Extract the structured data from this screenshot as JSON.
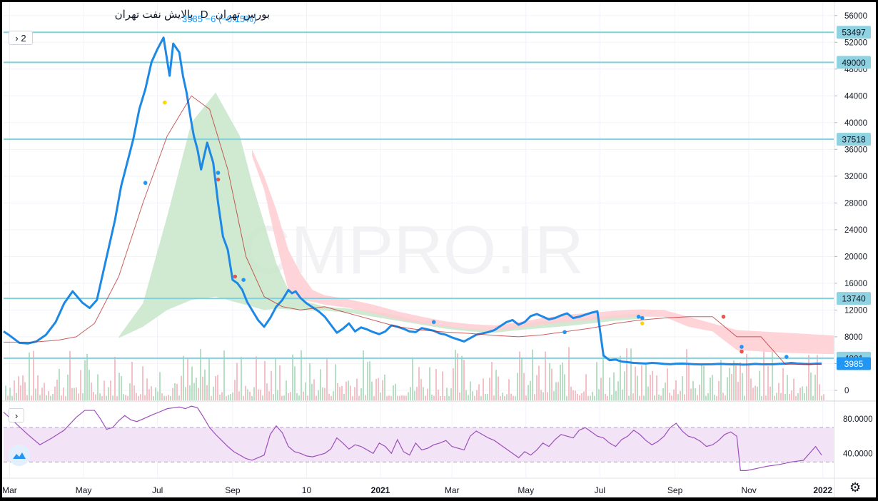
{
  "header": {
    "symbol": "پالایش نفت تهران",
    "interval": "D",
    "exchange": "بورس تهران",
    "last_price": "3985",
    "change": "−6 (−0.15%)",
    "collapse_label": "2"
  },
  "watermark": "CMPRO.IR",
  "colors": {
    "price_line": "#1e88e5",
    "level_line": "#7fd1de",
    "level_badge": "#8fd3e3",
    "rsi_band": "#f3e3f7",
    "rsi_line": "#9c4fbc",
    "cloud_green": "#c8e6c9",
    "cloud_red": "#ffcdd2",
    "kijun": "#b71c1c"
  },
  "chart_data": [
    {
      "type": "line",
      "name_hint": "price",
      "y_ticks": [
        0,
        4000,
        8000,
        12000,
        16000,
        20000,
        24000,
        28000,
        32000,
        36000,
        40000,
        44000,
        48000,
        52000,
        56000
      ],
      "ylim": [
        -1500,
        58000
      ],
      "x_ticks": [
        "Mar",
        "May",
        "Jul",
        "Sep",
        "10",
        "2021",
        "Mar",
        "May",
        "Jul",
        "Sep",
        "Nov",
        "2022"
      ],
      "x_tick_days": [
        0,
        61,
        122,
        184,
        245,
        306,
        365,
        426,
        487,
        549,
        610,
        671
      ],
      "xlim": [
        -5,
        680
      ],
      "levels": [
        53497,
        49000,
        37518,
        13740,
        4801
      ],
      "last_value_badge": 3985,
      "series": [
        {
          "role": "price",
          "x": [
            -5,
            0,
            8,
            15,
            22,
            30,
            38,
            45,
            52,
            60,
            66,
            72,
            77,
            82,
            87,
            92,
            97,
            102,
            107,
            112,
            117,
            122,
            127,
            132,
            135,
            140,
            143,
            146,
            150,
            152,
            155,
            158,
            163,
            168,
            172,
            176,
            180,
            184,
            188,
            192,
            196,
            200,
            205,
            210,
            215,
            220,
            225,
            230,
            233,
            236,
            240,
            245,
            250,
            255,
            260,
            265,
            270,
            275,
            280,
            285,
            290,
            295,
            300,
            305,
            310,
            315,
            320,
            325,
            330,
            335,
            340,
            345,
            350,
            355,
            360,
            365,
            370,
            375,
            380,
            385,
            390,
            395,
            400,
            405,
            410,
            415,
            420,
            425,
            430,
            435,
            440,
            445,
            450,
            455,
            460,
            465,
            470,
            475,
            480,
            485,
            490,
            495,
            500,
            505,
            510,
            515,
            520,
            525,
            530,
            535,
            540,
            545,
            550,
            555,
            560,
            565,
            570,
            575,
            580,
            585,
            590,
            595,
            600,
            605,
            610,
            615,
            620,
            625,
            630,
            635,
            640,
            645,
            650,
            655,
            660,
            665,
            670
          ],
          "y": [
            8800,
            8200,
            7100,
            7000,
            7300,
            8300,
            10200,
            13000,
            14800,
            13100,
            12300,
            13500,
            17500,
            21500,
            25500,
            30500,
            34000,
            37500,
            42000,
            45000,
            49000,
            51000,
            52700,
            47000,
            51800,
            50500,
            47000,
            44500,
            40000,
            38000,
            36000,
            33000,
            37000,
            34000,
            28000,
            23000,
            21000,
            16500,
            16000,
            15000,
            13200,
            12000,
            10500,
            9500,
            10800,
            12500,
            13500,
            15000,
            14500,
            14800,
            13800,
            13000,
            12400,
            11800,
            11000,
            9800,
            8600,
            9200,
            10000,
            8800,
            9400,
            9100,
            8700,
            8400,
            8800,
            9700,
            9500,
            9200,
            8800,
            8700,
            9300,
            9100,
            8900,
            8500,
            8300,
            7900,
            7600,
            7300,
            7800,
            8300,
            8500,
            8700,
            9000,
            9600,
            10200,
            10500,
            9800,
            10200,
            11100,
            11400,
            11000,
            10600,
            10800,
            11200,
            11500,
            10800,
            11000,
            11300,
            11600,
            11800,
            5200,
            4500,
            4600,
            4300,
            4200,
            4100,
            4050,
            4000,
            4100,
            4050,
            3950,
            3900,
            3980,
            4000,
            3950,
            3900,
            3870,
            3880,
            3900,
            3950,
            3920,
            3880,
            3900,
            3850,
            3870,
            3950,
            3900,
            3880,
            3900,
            3950,
            3990,
            4100,
            4000,
            3950,
            3920,
            3985,
            3985
          ]
        },
        {
          "role": "kijun",
          "x": [
            -5,
            20,
            40,
            55,
            70,
            90,
            110,
            130,
            150,
            165,
            180,
            195,
            210,
            225,
            240,
            260,
            280,
            300,
            320,
            340,
            360,
            380,
            400,
            420,
            440,
            460,
            480,
            500,
            520,
            540,
            560,
            580,
            600,
            620,
            640,
            660,
            670
          ],
          "y": [
            7200,
            7200,
            7500,
            8000,
            10000,
            17000,
            28000,
            38000,
            44000,
            42000,
            33000,
            20000,
            14000,
            12500,
            12000,
            12500,
            11500,
            10500,
            9500,
            9000,
            8700,
            8500,
            8200,
            8000,
            8300,
            8800,
            9300,
            10000,
            10500,
            10800,
            11000,
            11000,
            8000,
            8000,
            3900,
            3900,
            3900
          ]
        }
      ],
      "cloud": [
        {
          "sign": "bullish",
          "x": [
            90,
            110,
            130,
            150,
            170,
            190,
            200,
            210,
            220,
            230,
            240,
            250,
            260,
            280,
            300,
            320,
            340,
            360,
            380,
            400,
            420,
            440,
            460,
            480,
            500,
            520
          ],
          "upper": [
            8000,
            13000,
            26000,
            40000,
            44500,
            38000,
            31000,
            25000,
            19000,
            15000,
            13500,
            13000,
            12500,
            12200,
            11800,
            11200,
            10200,
            9600,
            9200,
            9000,
            9800,
            10400,
            10600,
            10900,
            11200,
            11500
          ],
          "lower": [
            7800,
            9500,
            12000,
            13500,
            14000,
            13000,
            12500,
            12000,
            12200,
            12100,
            12000,
            11900,
            11900,
            11600,
            11000,
            10400,
            9800,
            9200,
            8800,
            8600,
            9000,
            9300,
            9600,
            10000,
            10400,
            10700
          ]
        },
        {
          "sign": "bearish",
          "x": [
            200,
            210,
            220,
            230,
            240,
            250,
            260,
            280,
            300,
            320,
            340,
            360,
            380,
            400,
            420,
            440,
            460,
            480,
            500,
            520,
            540,
            560,
            580,
            600,
            620,
            640,
            660,
            680
          ],
          "upper": [
            36000,
            32000,
            27000,
            21000,
            17500,
            15000,
            14200,
            13600,
            12800,
            11800,
            11000,
            10300,
            9900,
            9700,
            10200,
            10800,
            11300,
            11600,
            11900,
            12100,
            12000,
            11000,
            10000,
            9000,
            8800,
            8600,
            8400,
            8200
          ],
          "lower": [
            35000,
            30000,
            22000,
            15000,
            13500,
            13200,
            12800,
            12300,
            11500,
            10600,
            10000,
            9500,
            9100,
            8900,
            9300,
            9800,
            10200,
            10500,
            10800,
            11000,
            11000,
            9500,
            8800,
            6000,
            5800,
            5600,
            5500,
            5400
          ]
        }
      ],
      "markers": [
        {
          "x": 112,
          "y": 31000,
          "color": "#2196f3"
        },
        {
          "x": 128,
          "y": 43000,
          "color": "#ffd600"
        },
        {
          "x": 172,
          "y": 32500,
          "color": "#2196f3"
        },
        {
          "x": 172,
          "y": 31500,
          "color": "#ef5350"
        },
        {
          "x": 186,
          "y": 17000,
          "color": "#ef5350"
        },
        {
          "x": 193,
          "y": 16500,
          "color": "#2196f3"
        },
        {
          "x": 350,
          "y": 10200,
          "color": "#2196f3"
        },
        {
          "x": 458,
          "y": 8700,
          "color": "#2196f3"
        },
        {
          "x": 519,
          "y": 11000,
          "color": "#2196f3"
        },
        {
          "x": 522,
          "y": 10800,
          "color": "#2196f3"
        },
        {
          "x": 522,
          "y": 10000,
          "color": "#ffd600"
        },
        {
          "x": 589,
          "y": 11000,
          "color": "#ef5350"
        },
        {
          "x": 604,
          "y": 6500,
          "color": "#2196f3"
        },
        {
          "x": 604,
          "y": 5800,
          "color": "#ef5350"
        },
        {
          "x": 641,
          "y": 5000,
          "color": "#2196f3"
        }
      ]
    },
    {
      "type": "line",
      "name_hint": "rsi",
      "y_ticks": [
        40,
        80
      ],
      "y_tick_labels": [
        "40.0000",
        "80.0000"
      ],
      "ylim": [
        12,
        100
      ],
      "band": [
        30,
        70
      ],
      "series": [
        {
          "role": "rsi",
          "x": [
            -5,
            5,
            15,
            25,
            35,
            45,
            55,
            62,
            70,
            75,
            80,
            85,
            90,
            95,
            100,
            105,
            110,
            118,
            125,
            130,
            135,
            140,
            145,
            150,
            155,
            160,
            165,
            170,
            175,
            180,
            185,
            190,
            195,
            200,
            205,
            210,
            215,
            220,
            225,
            230,
            235,
            240,
            245,
            250,
            255,
            260,
            265,
            270,
            275,
            280,
            285,
            290,
            295,
            300,
            305,
            310,
            315,
            320,
            325,
            330,
            335,
            340,
            345,
            350,
            355,
            360,
            365,
            370,
            375,
            380,
            385,
            390,
            395,
            400,
            405,
            410,
            415,
            420,
            425,
            430,
            435,
            440,
            445,
            450,
            455,
            460,
            465,
            470,
            475,
            480,
            485,
            490,
            495,
            500,
            505,
            510,
            515,
            520,
            525,
            530,
            535,
            540,
            545,
            550,
            555,
            560,
            565,
            570,
            575,
            580,
            585,
            590,
            595,
            600,
            603,
            608,
            615,
            625,
            635,
            645,
            655,
            665,
            670
          ],
          "y": [
            88,
            75,
            62,
            50,
            58,
            67,
            82,
            90,
            90,
            80,
            68,
            70,
            78,
            84,
            79,
            77,
            80,
            85,
            89,
            92,
            93,
            94,
            92,
            95,
            93,
            82,
            70,
            62,
            55,
            48,
            42,
            38,
            34,
            32,
            35,
            38,
            62,
            72,
            64,
            48,
            42,
            40,
            37,
            36,
            38,
            40,
            45,
            58,
            52,
            45,
            50,
            48,
            44,
            40,
            52,
            48,
            40,
            56,
            42,
            38,
            52,
            44,
            46,
            50,
            52,
            55,
            48,
            46,
            44,
            60,
            66,
            62,
            58,
            55,
            50,
            45,
            40,
            35,
            42,
            38,
            44,
            52,
            48,
            56,
            62,
            60,
            58,
            67,
            70,
            65,
            60,
            58,
            52,
            48,
            56,
            60,
            67,
            62,
            55,
            50,
            54,
            60,
            70,
            75,
            66,
            60,
            58,
            54,
            48,
            50,
            55,
            62,
            65,
            60,
            20,
            20,
            22,
            25,
            27,
            30,
            32,
            48,
            38
          ]
        }
      ]
    }
  ]
}
